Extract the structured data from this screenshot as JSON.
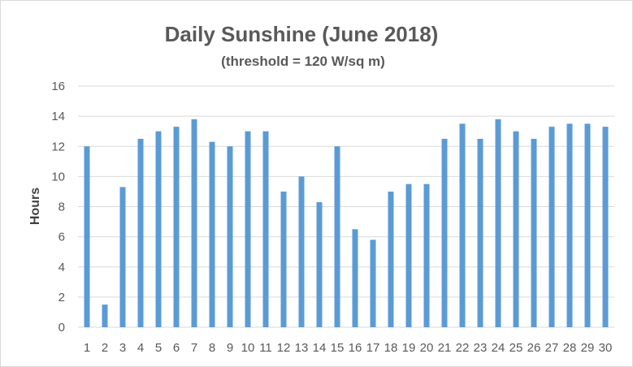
{
  "chart_data": {
    "type": "bar",
    "title": "Daily Sunshine (June 2018)",
    "subtitle": "(threshold = 120 W/sq m)",
    "xlabel": "",
    "ylabel": "Hours",
    "ylim": [
      0,
      16
    ],
    "yticks": [
      "0",
      "2",
      "4",
      "6",
      "8",
      "10",
      "12",
      "14",
      "16"
    ],
    "categories": [
      "1",
      "2",
      "3",
      "4",
      "5",
      "6",
      "7",
      "8",
      "9",
      "10",
      "11",
      "12",
      "13",
      "14",
      "15",
      "16",
      "17",
      "18",
      "19",
      "20",
      "21",
      "22",
      "23",
      "24",
      "25",
      "26",
      "27",
      "28",
      "29",
      "30"
    ],
    "values": [
      12,
      1.5,
      9.3,
      12.5,
      13,
      13.3,
      13.8,
      12.3,
      12,
      13,
      13,
      9,
      10,
      8.3,
      12,
      6.5,
      5.8,
      9,
      9.5,
      9.5,
      12.5,
      13.5,
      12.5,
      13.8,
      13,
      12.5,
      13.3,
      13.5,
      13.5,
      13.3
    ],
    "grid": true,
    "colors": {
      "bar": "#5b9bd5",
      "grid": "#d9d9d9",
      "text": "#595959"
    }
  }
}
